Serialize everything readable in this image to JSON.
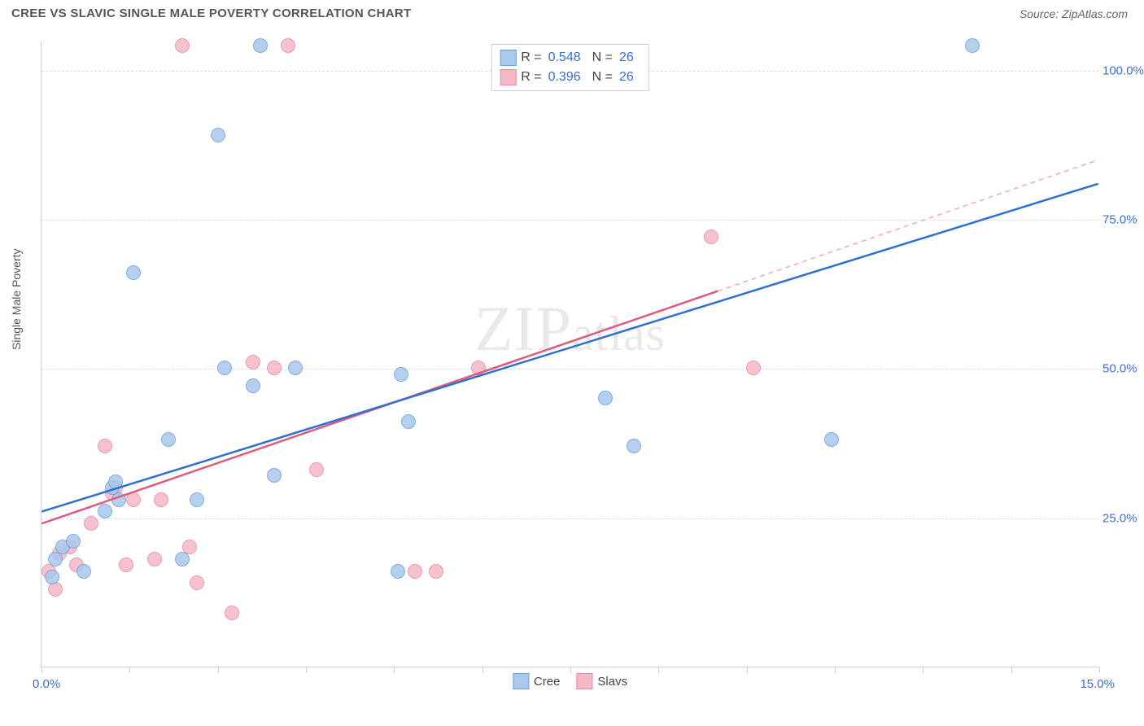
{
  "title": "CREE VS SLAVIC SINGLE MALE POVERTY CORRELATION CHART",
  "source": "Source: ZipAtlas.com",
  "ylabel": "Single Male Poverty",
  "watermark": "ZIPatlas",
  "chart": {
    "type": "scatter",
    "xlim": [
      0,
      15
    ],
    "ylim": [
      0,
      105
    ],
    "x_ticks": [
      0,
      1.25,
      2.5,
      3.75,
      5,
      6.25,
      7.5,
      8.75,
      10,
      11.25,
      12.5,
      13.75,
      15
    ],
    "x_min_label": "0.0%",
    "x_max_label": "15.0%",
    "y_gridlines": [
      25,
      50,
      75,
      100
    ],
    "y_tick_labels": [
      "25.0%",
      "50.0%",
      "75.0%",
      "100.0%"
    ],
    "background_color": "#ffffff",
    "grid_color": "#dddddd",
    "axis_color": "#d0d0d0",
    "label_color": "#3b6fc9",
    "marker_radius": 9,
    "series": [
      {
        "name": "Cree",
        "fill_color": "#a9c8ec",
        "stroke_color": "#6b9fde",
        "fill_opacity": 0.5,
        "R": "0.548",
        "N": "26",
        "trend": {
          "x1": 0,
          "y1": 26,
          "x2": 15,
          "y2": 81,
          "color": "#2f6fd0",
          "width": 2.5,
          "dash": "none"
        },
        "points": [
          {
            "x": 0.15,
            "y": 15
          },
          {
            "x": 0.2,
            "y": 18
          },
          {
            "x": 0.3,
            "y": 20
          },
          {
            "x": 0.6,
            "y": 16
          },
          {
            "x": 0.9,
            "y": 26
          },
          {
            "x": 1.0,
            "y": 30
          },
          {
            "x": 1.05,
            "y": 31
          },
          {
            "x": 1.1,
            "y": 28
          },
          {
            "x": 1.3,
            "y": 66
          },
          {
            "x": 1.8,
            "y": 38
          },
          {
            "x": 2.0,
            "y": 18
          },
          {
            "x": 2.2,
            "y": 28
          },
          {
            "x": 2.5,
            "y": 89
          },
          {
            "x": 2.6,
            "y": 50
          },
          {
            "x": 3.0,
            "y": 47
          },
          {
            "x": 3.1,
            "y": 104
          },
          {
            "x": 3.3,
            "y": 32
          },
          {
            "x": 3.6,
            "y": 50
          },
          {
            "x": 5.1,
            "y": 49
          },
          {
            "x": 5.05,
            "y": 16
          },
          {
            "x": 5.2,
            "y": 41
          },
          {
            "x": 8.0,
            "y": 45
          },
          {
            "x": 8.4,
            "y": 37
          },
          {
            "x": 11.2,
            "y": 38
          },
          {
            "x": 13.2,
            "y": 104
          },
          {
            "x": 0.45,
            "y": 21
          }
        ]
      },
      {
        "name": "Slavs",
        "fill_color": "#f4b8c6",
        "stroke_color": "#e88aa0",
        "fill_opacity": 0.5,
        "R": "0.396",
        "N": "26",
        "trend_solid": {
          "x1": 0,
          "y1": 24,
          "x2": 9.6,
          "y2": 63,
          "color": "#e05a7d",
          "width": 2.5
        },
        "trend_dashed": {
          "x1": 9.6,
          "y1": 63,
          "x2": 15,
          "y2": 85,
          "color": "#f0a8b8",
          "width": 1.5
        },
        "points": [
          {
            "x": 0.1,
            "y": 16
          },
          {
            "x": 0.2,
            "y": 13
          },
          {
            "x": 0.25,
            "y": 19
          },
          {
            "x": 0.4,
            "y": 20
          },
          {
            "x": 0.5,
            "y": 17
          },
          {
            "x": 0.7,
            "y": 24
          },
          {
            "x": 0.9,
            "y": 37
          },
          {
            "x": 1.0,
            "y": 29
          },
          {
            "x": 1.05,
            "y": 30
          },
          {
            "x": 1.2,
            "y": 17
          },
          {
            "x": 1.3,
            "y": 28
          },
          {
            "x": 1.6,
            "y": 18
          },
          {
            "x": 1.7,
            "y": 28
          },
          {
            "x": 2.0,
            "y": 104
          },
          {
            "x": 2.1,
            "y": 20
          },
          {
            "x": 2.2,
            "y": 14
          },
          {
            "x": 2.7,
            "y": 9
          },
          {
            "x": 3.0,
            "y": 51
          },
          {
            "x": 3.3,
            "y": 50
          },
          {
            "x": 3.5,
            "y": 104
          },
          {
            "x": 3.9,
            "y": 33
          },
          {
            "x": 5.3,
            "y": 16
          },
          {
            "x": 5.6,
            "y": 16
          },
          {
            "x": 6.2,
            "y": 50
          },
          {
            "x": 9.5,
            "y": 72
          },
          {
            "x": 10.1,
            "y": 50
          }
        ]
      }
    ],
    "bottom_legend": [
      "Cree",
      "Slavs"
    ]
  }
}
